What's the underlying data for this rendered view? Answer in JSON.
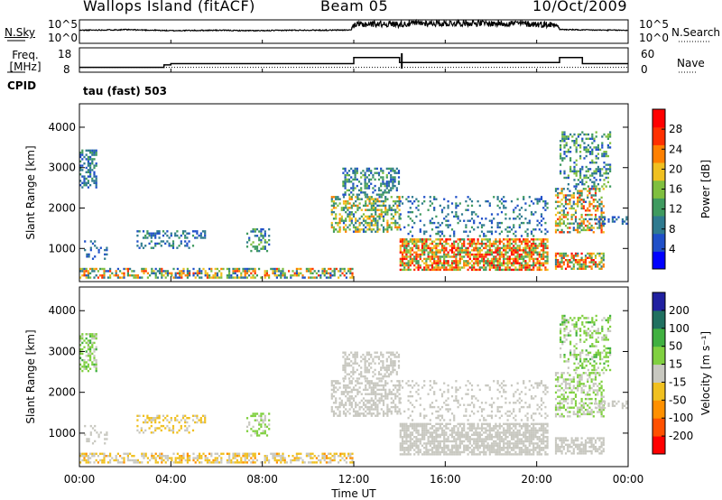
{
  "header": {
    "station": "Wallops Island (fitACF)",
    "beam": "Beam 05",
    "date": "10/Oct/2009"
  },
  "panels": {
    "noise_left": "N.Sky",
    "noise_right": "N.Search",
    "noise_ticks": [
      "10^5",
      "10^0"
    ],
    "freq_label_1": "Freq.",
    "freq_label_2": "[MHz]",
    "freq_ticks": [
      "18",
      "8"
    ],
    "nave_label": "Nave",
    "nave_ticks": [
      "60",
      "0"
    ],
    "cpid_label": "CPID",
    "cpid_value": "tau (fast) 503"
  },
  "colors": {
    "power_scale": [
      "#0000ff",
      "#1f4fc8",
      "#2f7a8f",
      "#3f9a5f",
      "#7fbf3f",
      "#f0c020",
      "#ff8000",
      "#ff3000",
      "#ff0000"
    ],
    "velocity_scale": [
      "#2020a0",
      "#207060",
      "#40b040",
      "#80d040",
      "#c8c8c0",
      "#f0c020",
      "#ff9000",
      "#ff5000",
      "#ff0000"
    ]
  },
  "chart_data": [
    {
      "type": "line",
      "title": "",
      "ylabel": "",
      "x_range": [
        "00:00",
        "24:00"
      ],
      "yscale": "log",
      "ylim": [
        1,
        100000
      ],
      "y_ticks": [
        "10^0",
        "10^5"
      ],
      "series": [
        {
          "name": "N.Sky",
          "style": "solid",
          "x": [
            0,
            1,
            2,
            3,
            4,
            5,
            6,
            7,
            8,
            9,
            10,
            11,
            11.9,
            12,
            13,
            14,
            15,
            16,
            17,
            18,
            19,
            20,
            20.8,
            21,
            22,
            23,
            24
          ],
          "values": [
            600,
            700,
            800,
            650,
            500,
            550,
            600,
            520,
            480,
            600,
            650,
            620,
            700,
            8000,
            15000,
            12000,
            20000,
            18000,
            22000,
            16000,
            19000,
            12000,
            9000,
            900,
            700,
            650,
            600
          ]
        },
        {
          "name": "N.Search",
          "style": "dotted",
          "x": [],
          "values": []
        }
      ]
    },
    {
      "type": "line",
      "title": "",
      "ylabel": "Freq. [MHz]",
      "y2label": "Nave",
      "x_range": [
        "00:00",
        "24:00"
      ],
      "ylim": [
        8,
        18
      ],
      "y2lim": [
        0,
        60
      ],
      "series": [
        {
          "name": "Freq.",
          "style": "solid",
          "x": [
            0,
            3.7,
            3.7,
            4.0,
            4.0,
            12.0,
            12.0,
            14.0,
            14.0,
            21.0,
            21.0,
            22.0,
            22.0,
            24.0
          ],
          "values": [
            10,
            10,
            11,
            11,
            11.5,
            11.5,
            14,
            14,
            12,
            12,
            14,
            14,
            11.5,
            11.5
          ]
        },
        {
          "name": "Nave",
          "style": "dotted",
          "x": [
            0,
            24
          ],
          "values": [
            12,
            12
          ]
        }
      ],
      "annotation": "tau (fast) 503"
    },
    {
      "type": "heatmap",
      "title": "",
      "xlabel": "Time UT",
      "ylabel": "Slant Range [km]",
      "x_ticks": [
        "00:00",
        "04:00",
        "08:00",
        "12:00",
        "16:00",
        "20:00",
        "00:00"
      ],
      "y_ticks": [
        1000,
        2000,
        3000,
        4000
      ],
      "ylim": [
        180,
        4580
      ],
      "colorbar_label": "Power [dB]",
      "colorbar_ticks": [
        4,
        8,
        12,
        16,
        20,
        24,
        28
      ],
      "colorbar_range": [
        0,
        30
      ],
      "regions": [
        {
          "t": [
            0.0,
            12.0
          ],
          "r": [
            250,
            520
          ],
          "density": 0.55,
          "v": [
            4,
            26
          ],
          "vel": [
            -60,
            15
          ]
        },
        {
          "t": [
            0.0,
            0.8
          ],
          "r": [
            2500,
            3450
          ],
          "density": 0.5,
          "v": [
            4,
            12
          ],
          "vel": [
            0,
            60
          ]
        },
        {
          "t": [
            0.2,
            1.2
          ],
          "r": [
            700,
            1200
          ],
          "density": 0.25,
          "v": [
            4,
            10
          ],
          "vel": [
            -10,
            10
          ]
        },
        {
          "t": [
            2.5,
            5.5
          ],
          "r": [
            1250,
            1450
          ],
          "density": 0.4,
          "v": [
            4,
            12
          ],
          "vel": [
            -40,
            0
          ]
        },
        {
          "t": [
            2.5,
            5.0
          ],
          "r": [
            1000,
            1200
          ],
          "density": 0.3,
          "v": [
            4,
            12
          ],
          "vel": [
            -40,
            0
          ]
        },
        {
          "t": [
            7.3,
            8.3
          ],
          "r": [
            900,
            1500
          ],
          "density": 0.4,
          "v": [
            4,
            16
          ],
          "vel": [
            -10,
            40
          ]
        },
        {
          "t": [
            11.0,
            14.0
          ],
          "r": [
            1400,
            2300
          ],
          "density": 0.5,
          "v": [
            6,
            22
          ],
          "vel": [
            -10,
            10
          ]
        },
        {
          "t": [
            11.5,
            14.0
          ],
          "r": [
            2300,
            3000
          ],
          "density": 0.4,
          "v": [
            4,
            14
          ],
          "vel": [
            -10,
            10
          ]
        },
        {
          "t": [
            14.0,
            20.5
          ],
          "r": [
            450,
            1250
          ],
          "density": 0.75,
          "v": [
            10,
            30
          ],
          "vel": [
            -15,
            15
          ]
        },
        {
          "t": [
            14.0,
            20.5
          ],
          "r": [
            1300,
            2300
          ],
          "density": 0.2,
          "v": [
            4,
            12
          ],
          "vel": [
            -10,
            10
          ]
        },
        {
          "t": [
            20.8,
            23.0
          ],
          "r": [
            450,
            900
          ],
          "density": 0.6,
          "v": [
            8,
            30
          ],
          "vel": [
            -15,
            10
          ]
        },
        {
          "t": [
            20.8,
            23.0
          ],
          "r": [
            1400,
            2500
          ],
          "density": 0.5,
          "v": [
            6,
            26
          ],
          "vel": [
            -10,
            40
          ]
        },
        {
          "t": [
            21.0,
            23.3
          ],
          "r": [
            2500,
            3900
          ],
          "density": 0.35,
          "v": [
            4,
            16
          ],
          "vel": [
            0,
            60
          ]
        },
        {
          "t": [
            22.5,
            24.0
          ],
          "r": [
            1600,
            1800
          ],
          "density": 0.3,
          "v": [
            4,
            10
          ],
          "vel": [
            -10,
            10
          ]
        }
      ]
    },
    {
      "type": "heatmap",
      "title": "",
      "xlabel": "Time UT",
      "ylabel": "Slant Range [km]",
      "x_ticks": [
        "00:00",
        "04:00",
        "08:00",
        "12:00",
        "16:00",
        "20:00",
        "00:00"
      ],
      "y_ticks": [
        1000,
        2000,
        3000,
        4000
      ],
      "ylim": [
        180,
        4580
      ],
      "colorbar_label": "Velocity [m s⁻¹]",
      "colorbar_ticks": [
        200,
        100,
        50,
        15,
        -15,
        -50,
        -100,
        -200
      ],
      "colorbar_range": [
        -250,
        250
      ],
      "source": "same regions as Power panel, coloured by velocity"
    }
  ],
  "axis_text": {
    "xlabel": "Time UT",
    "ylabel": "Slant Range [km]",
    "power_label": "Power [dB]",
    "velocity_label": "Velocity [m s⁻¹]"
  }
}
